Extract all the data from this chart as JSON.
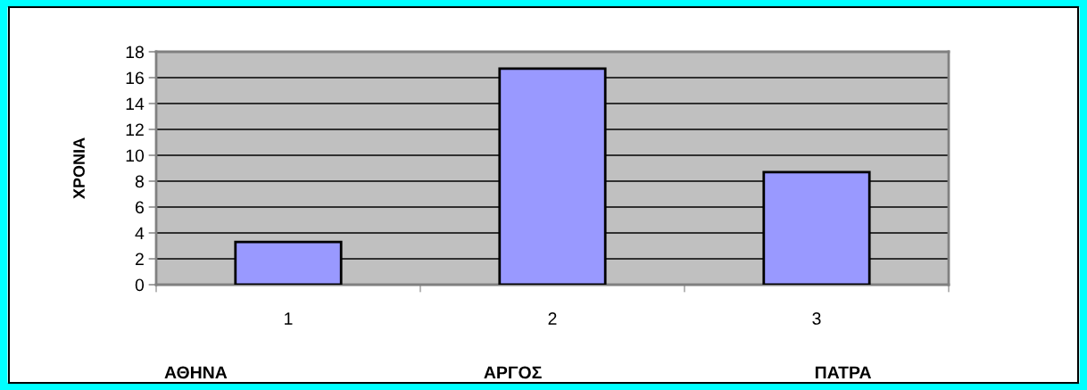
{
  "chart_data": {
    "type": "bar",
    "ylabel": "ΧΡΟΝΙΑ",
    "categories": [
      "1",
      "2",
      "3"
    ],
    "values": [
      3.3,
      16.7,
      8.7
    ],
    "color": "#9999ff",
    "ylim": [
      0,
      18
    ],
    "yticks": [
      0,
      2,
      4,
      6,
      8,
      10,
      12,
      14,
      16,
      18
    ],
    "grid": "y",
    "legend": false,
    "annotations": [
      "ΑΘΗΝΑ",
      "ΑΡΓΟΣ",
      "ΠΑΤΡΑ"
    ]
  }
}
